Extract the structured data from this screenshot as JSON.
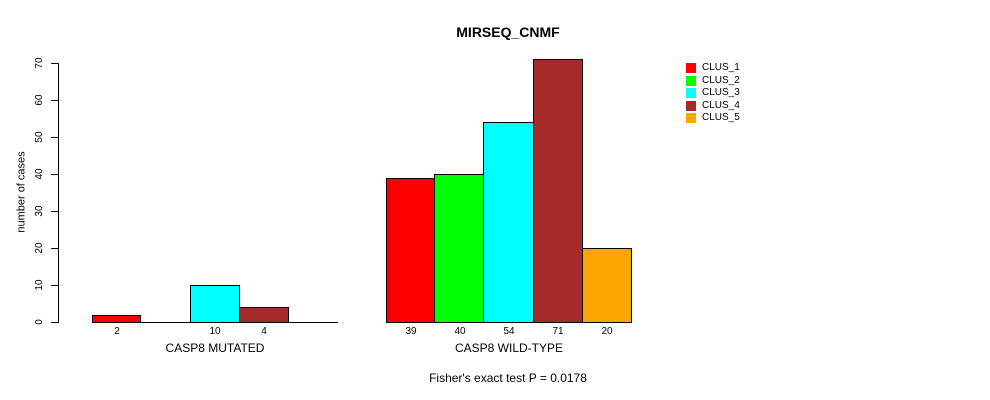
{
  "chart_data": {
    "type": "bar",
    "title": "MIRSEQ_CNMF",
    "ylabel": "number of cases",
    "xlabel": "",
    "ylim": [
      0,
      70
    ],
    "yticks": [
      0,
      10,
      20,
      30,
      40,
      50,
      60,
      70
    ],
    "grid": false,
    "legend_position": "right",
    "annotation": "Fisher's exact test P = 0.0178",
    "clusters": [
      "CLUS_1",
      "CLUS_2",
      "CLUS_3",
      "CLUS_4",
      "CLUS_5"
    ],
    "colors": [
      "#FF0000",
      "#00FF00",
      "#00FFFF",
      "#A52A2A",
      "#FFA500"
    ],
    "groups": [
      {
        "label": "CASP8 MUTATED",
        "values": [
          2,
          0,
          10,
          4,
          0
        ],
        "bar_labels": [
          "2",
          "",
          "10",
          "4",
          ""
        ]
      },
      {
        "label": "CASP8 WILD-TYPE",
        "values": [
          39,
          40,
          54,
          71,
          20
        ],
        "bar_labels": [
          "39",
          "40",
          "54",
          "71",
          "20"
        ]
      }
    ],
    "legend": [
      {
        "label": "CLUS_1",
        "color": "#FF0000"
      },
      {
        "label": "CLUS_2",
        "color": "#00FF00"
      },
      {
        "label": "CLUS_3",
        "color": "#00FFFF"
      },
      {
        "label": "CLUS_4",
        "color": "#A52A2A"
      },
      {
        "label": "CLUS_5",
        "color": "#FFA500"
      }
    ]
  }
}
